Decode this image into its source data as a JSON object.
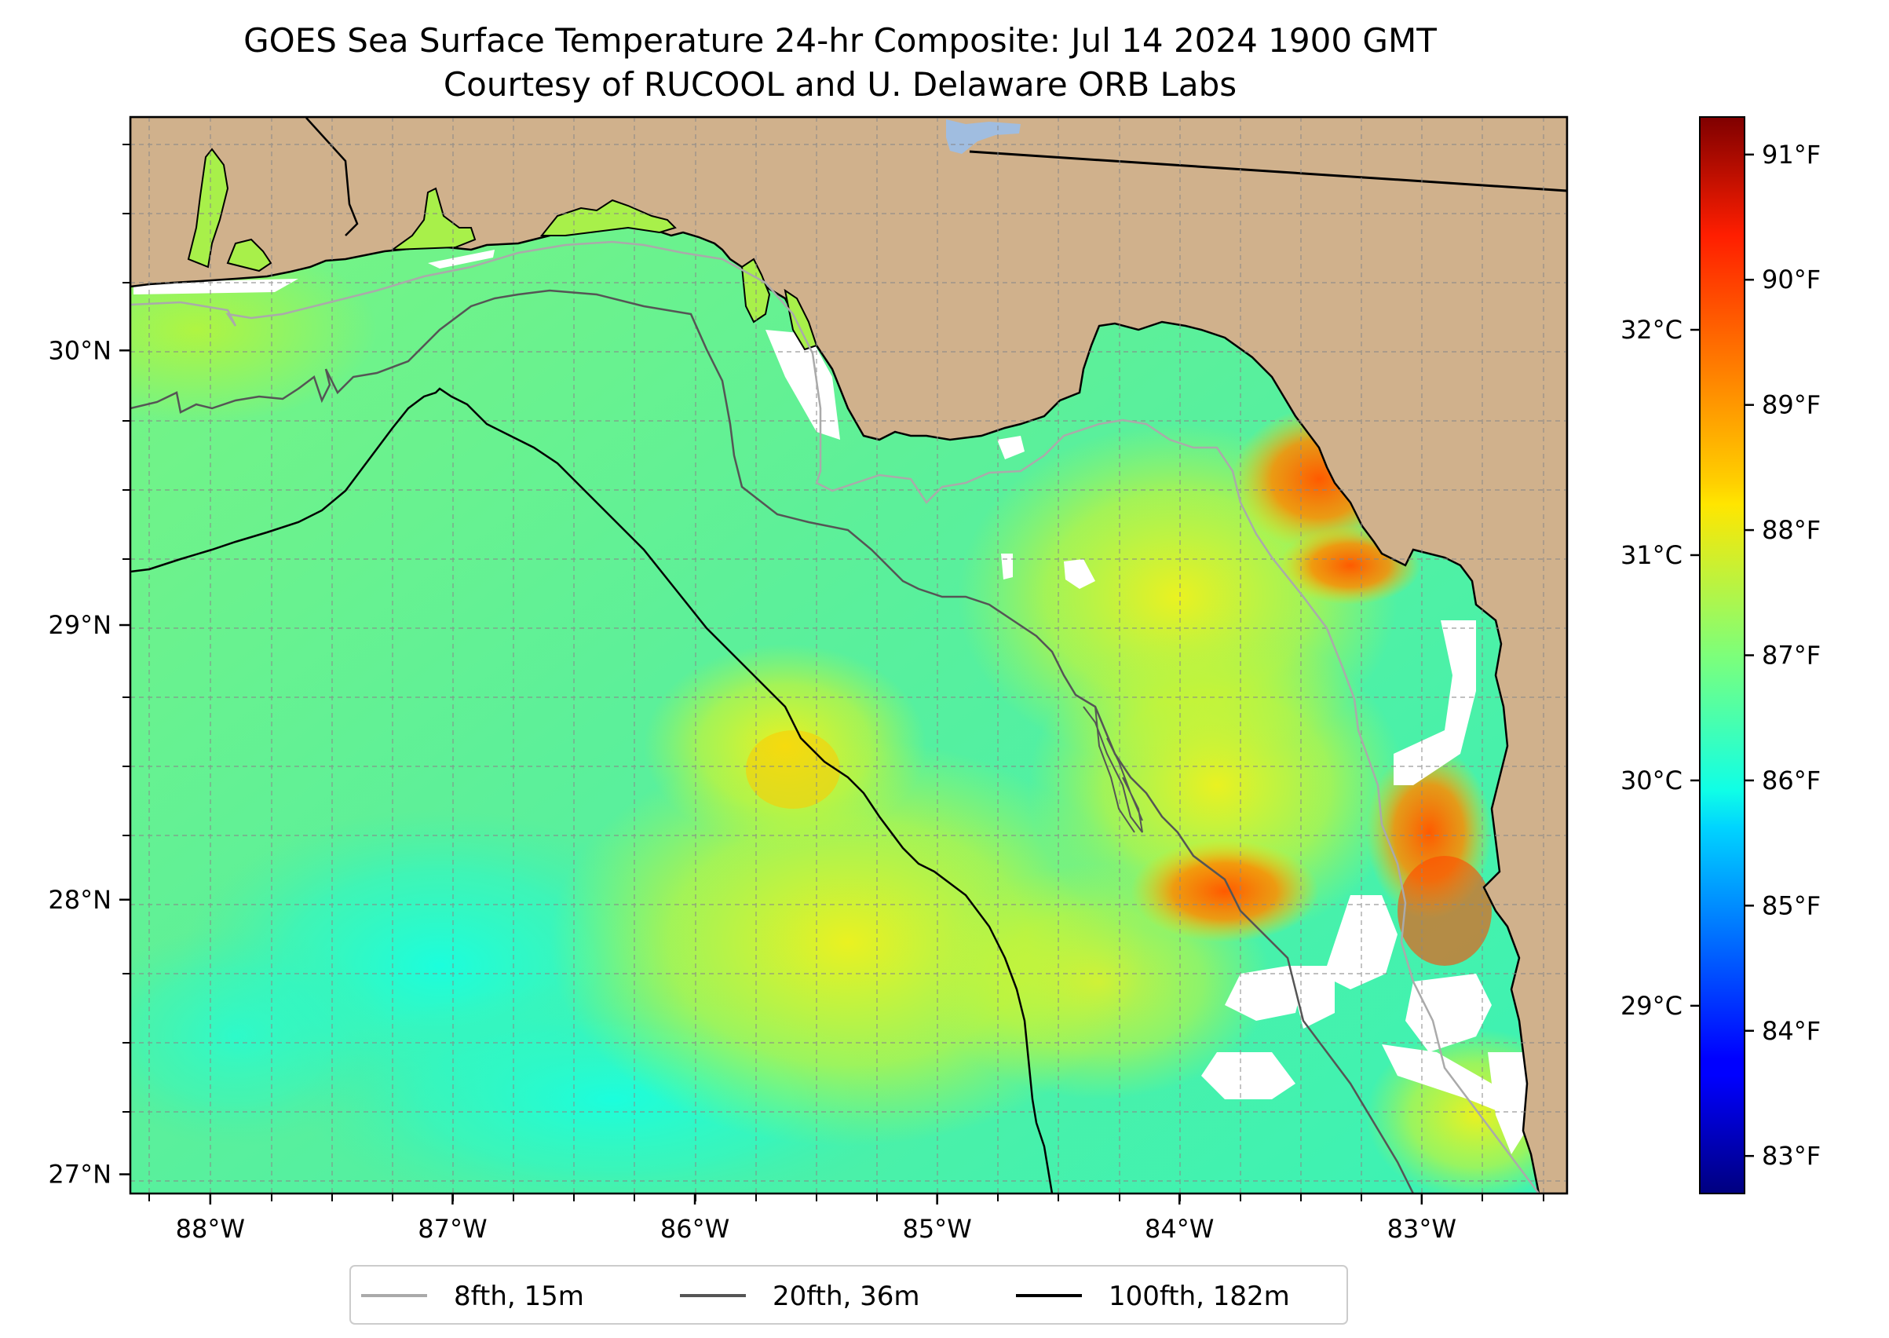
{
  "title_line1": "GOES Sea Surface Temperature 24-hr Composite: Jul 14 2024 1900 GMT",
  "title_line2": "Courtesy of RUCOOL and U. Delaware ORB Labs",
  "map": {
    "lon_range": [
      -88.33,
      -82.4
    ],
    "lat_range": [
      26.93,
      30.85
    ],
    "lon_ticks": [
      {
        "value": -88,
        "label": "88°W"
      },
      {
        "value": -87,
        "label": "87°W"
      },
      {
        "value": -86,
        "label": "86°W"
      },
      {
        "value": -85,
        "label": "85°W"
      },
      {
        "value": -84,
        "label": "84°W"
      },
      {
        "value": -83,
        "label": "83°W"
      }
    ],
    "lat_ticks": [
      {
        "value": 27,
        "label": "27°N"
      },
      {
        "value": 28,
        "label": "28°N"
      },
      {
        "value": 29,
        "label": "29°N"
      },
      {
        "value": 30,
        "label": "30°N"
      }
    ],
    "grid": true,
    "colors": {
      "land": "#d0b18c",
      "no_data": "#ffffff",
      "lake": "#a0bde0",
      "coastline": "#000000",
      "isobath_15m": "#aaaaaa",
      "isobath_36m": "#555555",
      "isobath_182m": "#000000"
    }
  },
  "legend": {
    "position": "bottom-center",
    "items": [
      {
        "label": "8fth, 15m",
        "color": "#aaaaaa"
      },
      {
        "label": "20fth, 36m",
        "color": "#555555"
      },
      {
        "label": "100fth, 182m",
        "color": "#000000"
      }
    ]
  },
  "colorbar": {
    "colormap": "jet",
    "range_f": [
      82.7,
      91.3
    ],
    "fahrenheit_ticks": [
      {
        "value": 83,
        "label": "83°F"
      },
      {
        "value": 84,
        "label": "84°F"
      },
      {
        "value": 85,
        "label": "85°F"
      },
      {
        "value": 86,
        "label": "86°F"
      },
      {
        "value": 87,
        "label": "87°F"
      },
      {
        "value": 88,
        "label": "88°F"
      },
      {
        "value": 89,
        "label": "89°F"
      },
      {
        "value": 90,
        "label": "90°F"
      },
      {
        "value": 91,
        "label": "91°F"
      }
    ],
    "celsius_ticks": [
      {
        "value": 29,
        "label": "29°C"
      },
      {
        "value": 30,
        "label": "30°C"
      },
      {
        "value": 31,
        "label": "31°C"
      },
      {
        "value": 32,
        "label": "32°C"
      }
    ]
  }
}
